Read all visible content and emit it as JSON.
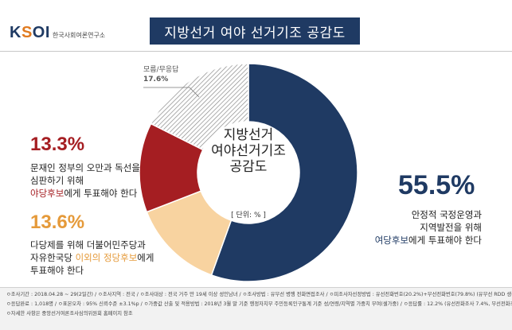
{
  "logo": {
    "text": "KSOI",
    "subtitle": "한국사회여론연구소"
  },
  "title": "지방선거 여야 선거기조 공감도",
  "center": {
    "title": "지방선거\n여야선거기조\n공감도",
    "unit": "[ 단위: % ]"
  },
  "no_response": {
    "label": "모름/무응답",
    "value": "17.6%"
  },
  "red_option": {
    "value": "13.3%",
    "line1": "문재인 정부의 오만과 독선을",
    "line2": "심판하기 위해",
    "hl": "야당후보",
    "after": "에게 투표해야 한다"
  },
  "orange_option": {
    "value": "13.6%",
    "line1": "다당제를 위해 더불어민주당과",
    "pre": "자유한국당 ",
    "hl": "이외의 정당후보",
    "after": "에게",
    "line3": "투표해야 한다"
  },
  "blue_option": {
    "value": "55.5%",
    "line1": "안정적 국정운영과",
    "line2": "지역발전을 위해",
    "hl": "여당후보",
    "after": "에게 투표해야 한다"
  },
  "footer": {
    "line1": "ㅇ조사기간 : 2018.04.28 ~ 29(2일간)  /  ㅇ조사지역 : 전국  /  ㅇ조사대상 : 전국 거주 만 19세 이상 성인남녀  /  ㅇ조사방법 : 유무선 병행 전화면접조사  /  ㅇ피조사자선정방법 : 유선전화번호(20.2%)+무선전화번호(79.8%) (유무선 RDD 생성)",
    "line2": "ㅇ응답완료 : 1,018명  /  ㅇ표본오차 : 95% 신뢰수준 ±3.1%p  /  ㅇ가중값 산출 및 적용방법 : 2018년 3월 말 기준 행정자치부 주민등록인구통계 기준  성/연령/지역별 가중치 부여(셀가중)  /  ㅇ응답률 : 12.2% (유선전화조사 7.4%, 무선전화조사 14.6%)",
    "line3": "ㅇ자세한 사항은 중앙선거여론조사심의위원회 홈페이지 참조"
  },
  "chart_data": {
    "type": "pie",
    "donut": true,
    "start": "top, clockwise",
    "slices": [
      {
        "label": "여당후보에게 투표해야 한다",
        "value": 55.5,
        "color": "#1f3a63",
        "pattern": "solid"
      },
      {
        "label": "이외의 정당후보에게 투표해야 한다",
        "value": 13.6,
        "color": "#f8d3a0",
        "pattern": "solid"
      },
      {
        "label": "야당후보에게 투표해야 한다",
        "value": 13.3,
        "color": "#a51e22",
        "pattern": "solid"
      },
      {
        "label": "모름/무응답",
        "value": 17.6,
        "color": "#ffffff",
        "pattern": "hatched"
      }
    ]
  }
}
